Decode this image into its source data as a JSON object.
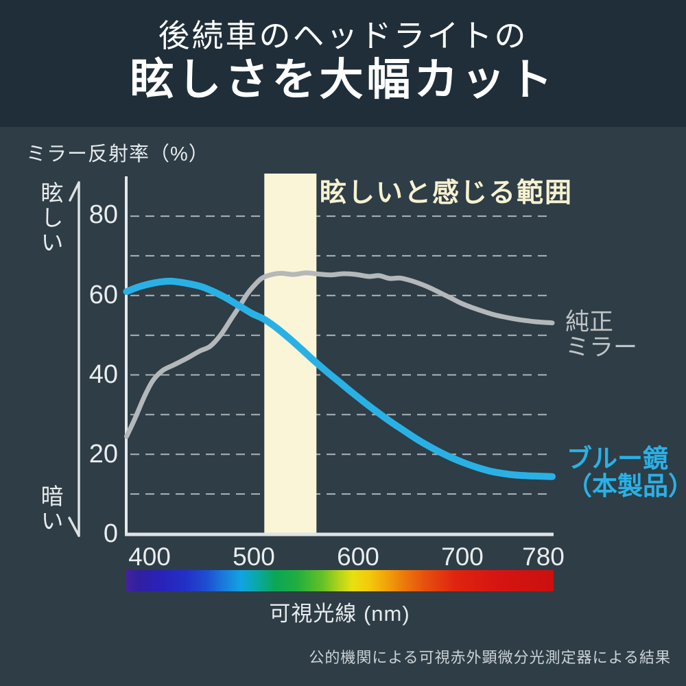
{
  "title": {
    "line1": "後続車のヘッドライトの",
    "line2": "眩しさを大幅カット"
  },
  "chart": {
    "y_axis_unit": "ミラー反射率（%）",
    "y_top_label": "眩しい",
    "y_bottom_label": "暗い",
    "glare_zone_label": "眩しいと感じる範囲",
    "y_tick_labels": [
      "80",
      "60",
      "40",
      "20",
      "0"
    ],
    "x_tick_labels": [
      "400",
      "500",
      "600",
      "700",
      "780"
    ],
    "x_axis_title": "可視光線 (nm)",
    "stock_label": "純正\nミラー",
    "product_label": "ブルー鏡\n（本製品）"
  },
  "footnote": "公的機関による可視赤外顕微分光測定器による結果",
  "colors": {
    "background_top": "#1f2e38",
    "background_main": "#2e3d46",
    "blue_curve": "#29b1e6",
    "gray_curve": "#b4b8ba",
    "glare_band": "#faf5d6",
    "glare_text": "#f6f2d0",
    "axis": "#e5e9eb",
    "tick_text": "#e9edef"
  },
  "chart_data": {
    "type": "line",
    "title": "後続車のヘッドライトの眩しさを大幅カット",
    "xlabel": "可視光線 (nm)",
    "ylabel": "ミラー反射率（%）",
    "xlim": [
      378,
      786
    ],
    "ylim": [
      0,
      90
    ],
    "x_ticks": [
      400,
      500,
      600,
      700,
      780
    ],
    "y_ticks": [
      0,
      20,
      40,
      60,
      80
    ],
    "grid": "horizontal dashed every 10%",
    "legend_position": "right of curves",
    "glare_band_nm": [
      510,
      560
    ],
    "glare_band_label": "眩しいと感じる範囲",
    "series": [
      {
        "name": "純正ミラー",
        "color": "#b4b8ba",
        "width": 7,
        "points": [
          [
            378,
            24.5
          ],
          [
            386,
            29
          ],
          [
            395,
            34.5
          ],
          [
            403,
            38.5
          ],
          [
            412,
            41
          ],
          [
            423,
            42.5
          ],
          [
            436,
            44.2
          ],
          [
            448,
            46
          ],
          [
            458,
            47.2
          ],
          [
            468,
            50
          ],
          [
            478,
            54
          ],
          [
            486,
            57.2
          ],
          [
            494,
            60.5
          ],
          [
            502,
            63
          ],
          [
            508,
            64.4
          ],
          [
            516,
            65.2
          ],
          [
            526,
            65.6
          ],
          [
            538,
            65.3
          ],
          [
            550,
            65.7
          ],
          [
            562,
            65.4
          ],
          [
            574,
            65.2
          ],
          [
            586,
            65.5
          ],
          [
            598,
            65.3
          ],
          [
            610,
            64.8
          ],
          [
            620,
            65.0
          ],
          [
            630,
            64.3
          ],
          [
            640,
            64.4
          ],
          [
            650,
            63.8
          ],
          [
            660,
            62.9
          ],
          [
            670,
            61.8
          ],
          [
            680,
            60.5
          ],
          [
            690,
            59.2
          ],
          [
            700,
            57.9
          ],
          [
            710,
            56.9
          ],
          [
            720,
            56.0
          ],
          [
            730,
            55.2
          ],
          [
            740,
            54.6
          ],
          [
            750,
            54.1
          ],
          [
            760,
            53.7
          ],
          [
            770,
            53.4
          ],
          [
            786,
            53.1
          ]
        ]
      },
      {
        "name": "ブルー鏡（本製品）",
        "color": "#29b1e6",
        "width": 10,
        "points": [
          [
            378,
            61.0
          ],
          [
            390,
            62.2
          ],
          [
            405,
            63.2
          ],
          [
            420,
            63.6
          ],
          [
            435,
            63.1
          ],
          [
            450,
            62.2
          ],
          [
            462,
            60.9
          ],
          [
            474,
            59.3
          ],
          [
            486,
            57.4
          ],
          [
            498,
            55.5
          ],
          [
            510,
            54.0
          ],
          [
            522,
            51.8
          ],
          [
            534,
            49.2
          ],
          [
            546,
            46.4
          ],
          [
            558,
            43.5
          ],
          [
            570,
            40.8
          ],
          [
            582,
            38.2
          ],
          [
            594,
            35.6
          ],
          [
            606,
            33.1
          ],
          [
            618,
            30.7
          ],
          [
            630,
            28.4
          ],
          [
            642,
            26.3
          ],
          [
            654,
            24.2
          ],
          [
            666,
            22.3
          ],
          [
            678,
            20.6
          ],
          [
            690,
            19.1
          ],
          [
            702,
            17.8
          ],
          [
            714,
            16.7
          ],
          [
            726,
            15.8
          ],
          [
            738,
            15.2
          ],
          [
            750,
            14.8
          ],
          [
            762,
            14.6
          ],
          [
            774,
            14.5
          ],
          [
            786,
            14.4
          ]
        ]
      }
    ]
  }
}
